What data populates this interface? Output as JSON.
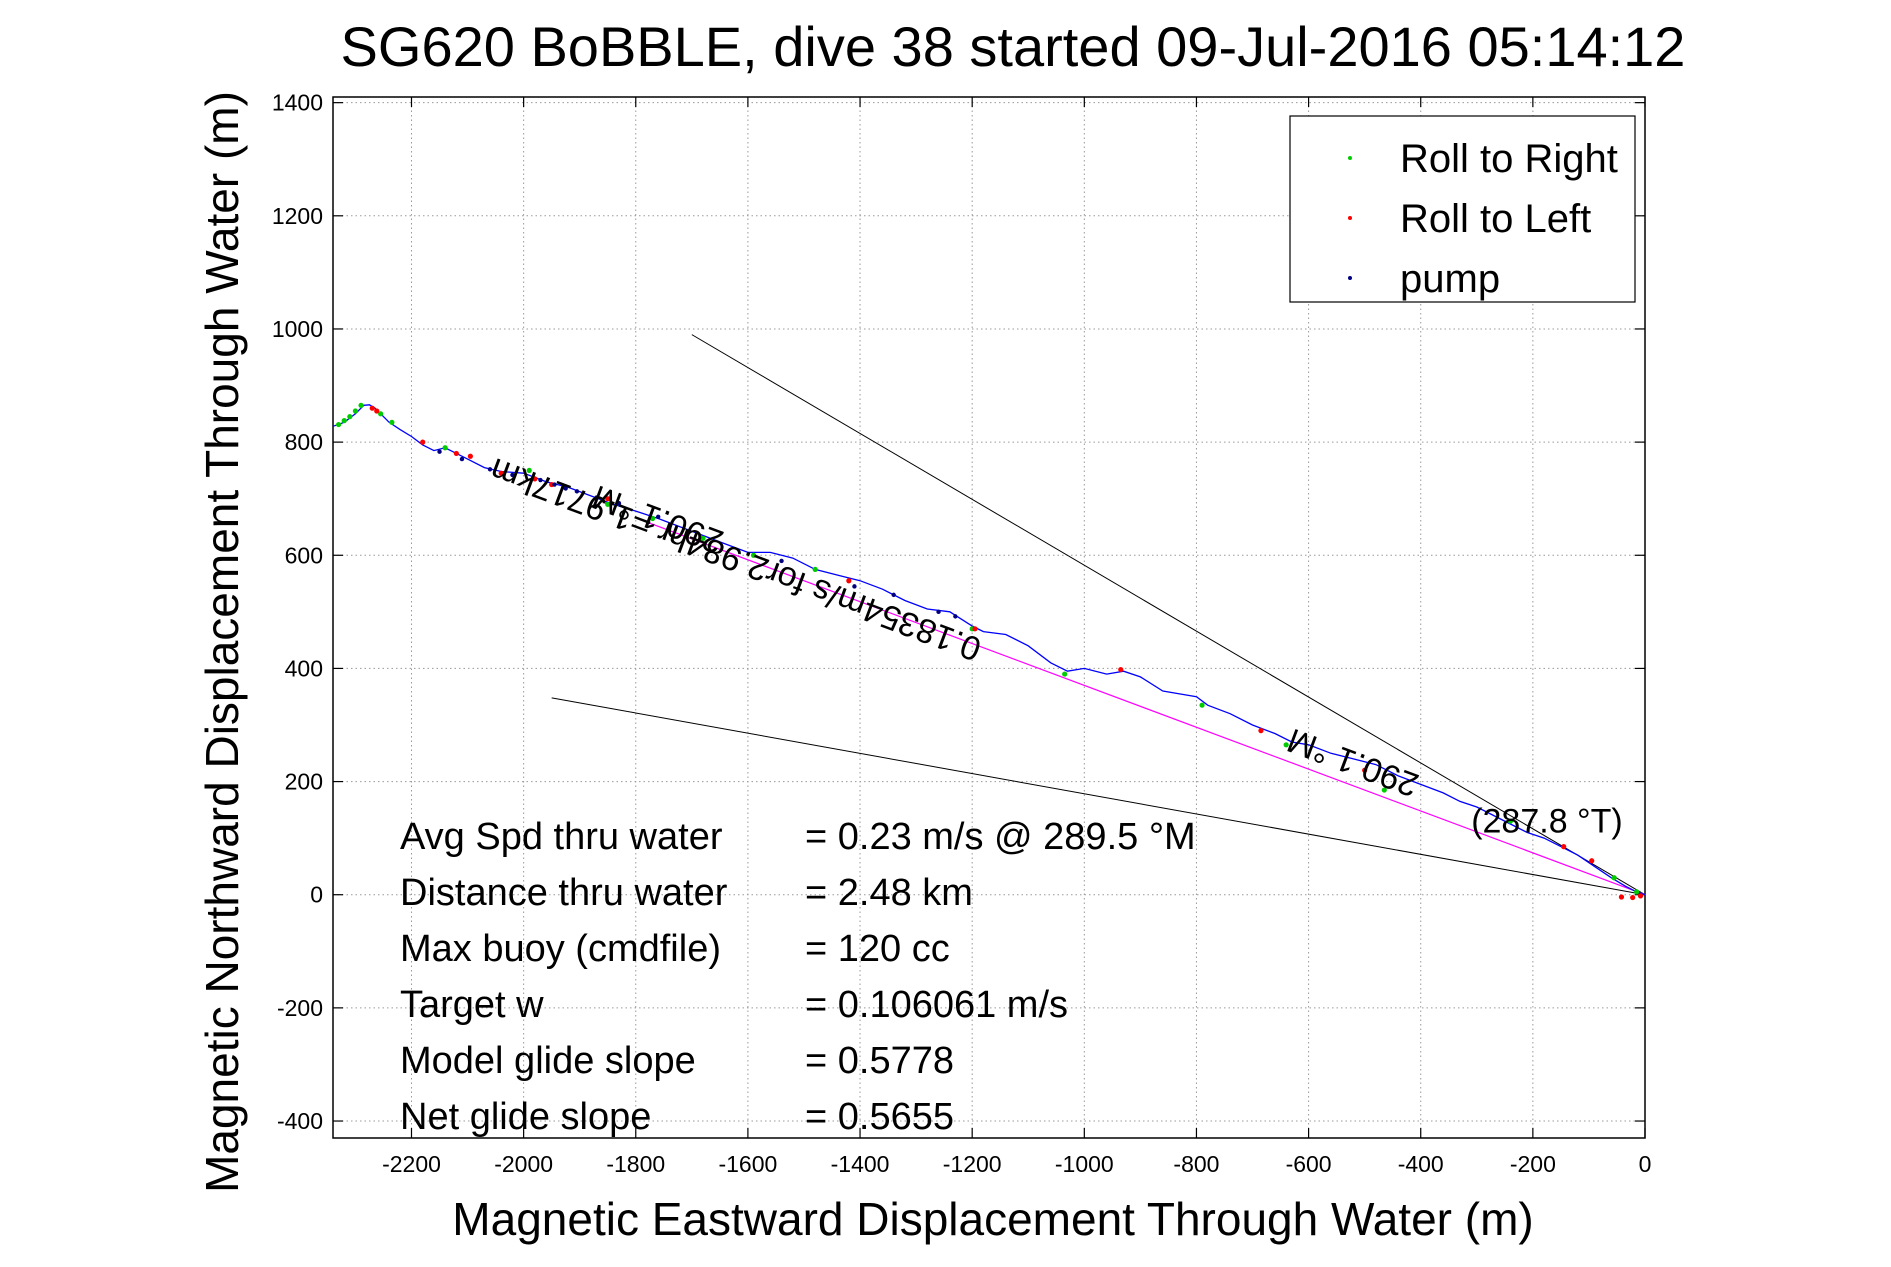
{
  "chart_data": {
    "type": "line",
    "title": "SG620 BoBBLE, dive 38 started 09-Jul-2016 05:14:12",
    "xlabel": "Magnetic Eastward Displacement Through Water (m)",
    "ylabel": "Magnetic Northward Displacement Through Water (m)",
    "xlim": [
      -2340,
      0
    ],
    "ylim": [
      -430,
      1410
    ],
    "xticks": [
      -2200,
      -2000,
      -1800,
      -1600,
      -1400,
      -1200,
      -1000,
      -800,
      -600,
      -400,
      -200,
      0
    ],
    "yticks": [
      -400,
      -200,
      0,
      200,
      400,
      600,
      800,
      1000,
      1200,
      1400
    ],
    "grid": true,
    "legend_position": "top-right",
    "legend": [
      {
        "label": "Roll to Right",
        "color": "#00cc00"
      },
      {
        "label": "Roll to Left",
        "color": "#ff0000"
      },
      {
        "label": "pump",
        "color": "#000080"
      }
    ],
    "track": {
      "color": "#0000ff",
      "x": [
        0,
        -15,
        -35,
        -60,
        -90,
        -120,
        -150,
        -180,
        -210,
        -240,
        -270,
        -300,
        -330,
        -360,
        -400,
        -440,
        -480,
        -520,
        -560,
        -600,
        -630,
        -660,
        -700,
        -740,
        -780,
        -800,
        -830,
        -860,
        -900,
        -930,
        -960,
        -1000,
        -1030,
        -1060,
        -1100,
        -1140,
        -1180,
        -1200,
        -1240,
        -1280,
        -1320,
        -1360,
        -1400,
        -1440,
        -1480,
        -1520,
        -1560,
        -1600,
        -1640,
        -1680,
        -1720,
        -1760,
        -1800,
        -1840,
        -1880,
        -1920,
        -1960,
        -2000,
        -2040,
        -2070,
        -2100,
        -2120,
        -2140,
        -2160,
        -2180,
        -2200,
        -2220,
        -2240,
        -2255,
        -2265,
        -2275,
        -2285,
        -2300,
        -2320,
        -2340
      ],
      "y": [
        0,
        5,
        15,
        30,
        50,
        70,
        85,
        100,
        110,
        125,
        140,
        155,
        165,
        180,
        195,
        210,
        230,
        240,
        250,
        265,
        270,
        285,
        300,
        320,
        335,
        350,
        355,
        360,
        385,
        395,
        390,
        400,
        395,
        410,
        440,
        460,
        465,
        475,
        500,
        505,
        520,
        540,
        555,
        565,
        575,
        595,
        605,
        605,
        620,
        635,
        650,
        665,
        678,
        690,
        705,
        720,
        730,
        745,
        748,
        755,
        770,
        780,
        790,
        785,
        795,
        810,
        822,
        835,
        850,
        860,
        866,
        865,
        850,
        835,
        828
      ]
    },
    "roll_right": {
      "x": [
        -15,
        -55,
        -240,
        -465,
        -640,
        -790,
        -1035,
        -1200,
        -1480,
        -1590,
        -1680,
        -1770,
        -1850,
        -1990,
        -2140,
        -2290,
        -2300,
        -2310,
        -2320,
        -2330,
        -2255,
        -2235
      ],
      "y": [
        5,
        30,
        130,
        185,
        265,
        335,
        390,
        470,
        575,
        600,
        630,
        665,
        690,
        750,
        790,
        865,
        855,
        845,
        838,
        831,
        850,
        835
      ]
    },
    "roll_left": {
      "x": [
        -8,
        -22,
        -42,
        -95,
        -145,
        -500,
        -685,
        -935,
        -1195,
        -1420,
        -1850,
        -1950,
        -1980,
        -2040,
        -2120,
        -2095,
        -2180,
        -2270,
        -2262
      ],
      "y": [
        -2,
        -5,
        -4,
        60,
        85,
        220,
        290,
        398,
        470,
        555,
        700,
        725,
        735,
        745,
        780,
        775,
        800,
        860,
        855
      ]
    },
    "pump": {
      "x": [
        -1230,
        -1260,
        -1340,
        -1410,
        -1540,
        -1760,
        -1830,
        -1870,
        -1905,
        -1925,
        -1945,
        -1970,
        -2020,
        -2060,
        -2110,
        -2150
      ],
      "y": [
        492,
        500,
        530,
        545,
        590,
        668,
        692,
        702,
        713,
        718,
        725,
        733,
        742,
        752,
        770,
        783
      ]
    },
    "mean_line": {
      "color": "#ff00ff",
      "x": [
        0,
        -1800
      ],
      "y": [
        0,
        666
      ]
    },
    "cone_lines": {
      "color": "#000000",
      "lines": [
        {
          "x": [
            0,
            -1700
          ],
          "y": [
            0,
            990
          ]
        },
        {
          "x": [
            0,
            -1950
          ],
          "y": [
            0,
            348
          ]
        }
      ]
    },
    "annotations": [
      {
        "text": "290.1 °M",
        "x": -1640,
        "y": 640,
        "rotation": 20.5
      },
      {
        "text": "0.18354m/s for2.984hr =1.9717km",
        "x": -1180,
        "y": 450,
        "rotation": 20.5
      },
      {
        "text": "290.1 °M",
        "x": -400,
        "y": 210,
        "rotation": 20.5
      },
      {
        "text": "(287.8 °T)",
        "x": -310,
        "y": 110,
        "rotation": 0
      }
    ],
    "stats": [
      {
        "label": "Avg Spd thru water",
        "value": "=  0.23 m/s @ 289.5 °M"
      },
      {
        "label": "Distance thru water",
        "value": "=  2.48 km"
      },
      {
        "label": "Max buoy (cmdfile)",
        "value": "= 120 cc"
      },
      {
        "label": "Target w",
        "value": "= 0.106061 m/s"
      },
      {
        "label": "Model glide slope",
        "value": "= 0.5778"
      },
      {
        "label": "Net glide slope",
        "value": "= 0.5655"
      }
    ]
  }
}
